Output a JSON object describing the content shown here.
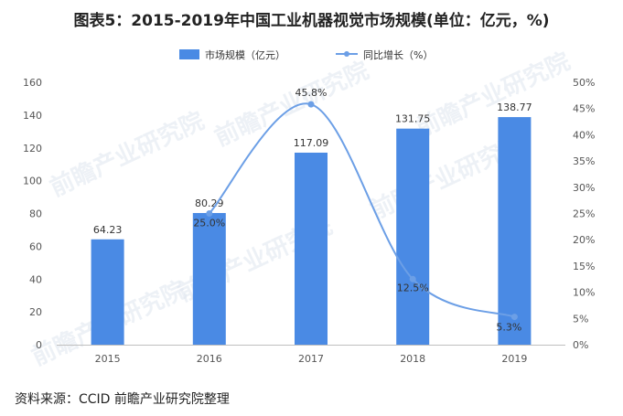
{
  "title": "图表5：2015-2019年中国工业机器视觉市场规模(单位：亿元，%)",
  "source": "资料来源：CCID 前瞻产业研究院整理",
  "watermark": "前瞻产业研究院",
  "colors": {
    "bar": "#4a8ae4",
    "line": "#6c9fe6",
    "axis": "#bfbfbf"
  },
  "chart_data": {
    "type": "bar",
    "categories": [
      "2015",
      "2016",
      "2017",
      "2018",
      "2019"
    ],
    "series": [
      {
        "name": "市场规模（亿元）",
        "type": "bar",
        "axis": "left",
        "values": [
          64.23,
          80.29,
          117.09,
          131.75,
          138.77
        ],
        "labels": [
          "64.23",
          "80.29",
          "117.09",
          "131.75",
          "138.77"
        ]
      },
      {
        "name": "同比增长（%）",
        "type": "line",
        "axis": "right",
        "x": [
          "2016",
          "2017",
          "2018",
          "2019"
        ],
        "values": [
          25.0,
          45.8,
          12.5,
          5.3
        ],
        "labels": [
          "25.0%",
          "45.8%",
          "12.5%",
          "5.3%"
        ]
      }
    ],
    "ylim": [
      0,
      160
    ],
    "yticks": [
      "0",
      "20",
      "40",
      "60",
      "80",
      "100",
      "120",
      "140",
      "160"
    ],
    "y2lim": [
      0,
      50
    ],
    "y2ticks": [
      "0%",
      "5%",
      "10%",
      "15%",
      "20%",
      "25%",
      "30%",
      "35%",
      "40%",
      "45%",
      "50%"
    ],
    "legend_position": "top-center",
    "grid": false
  }
}
